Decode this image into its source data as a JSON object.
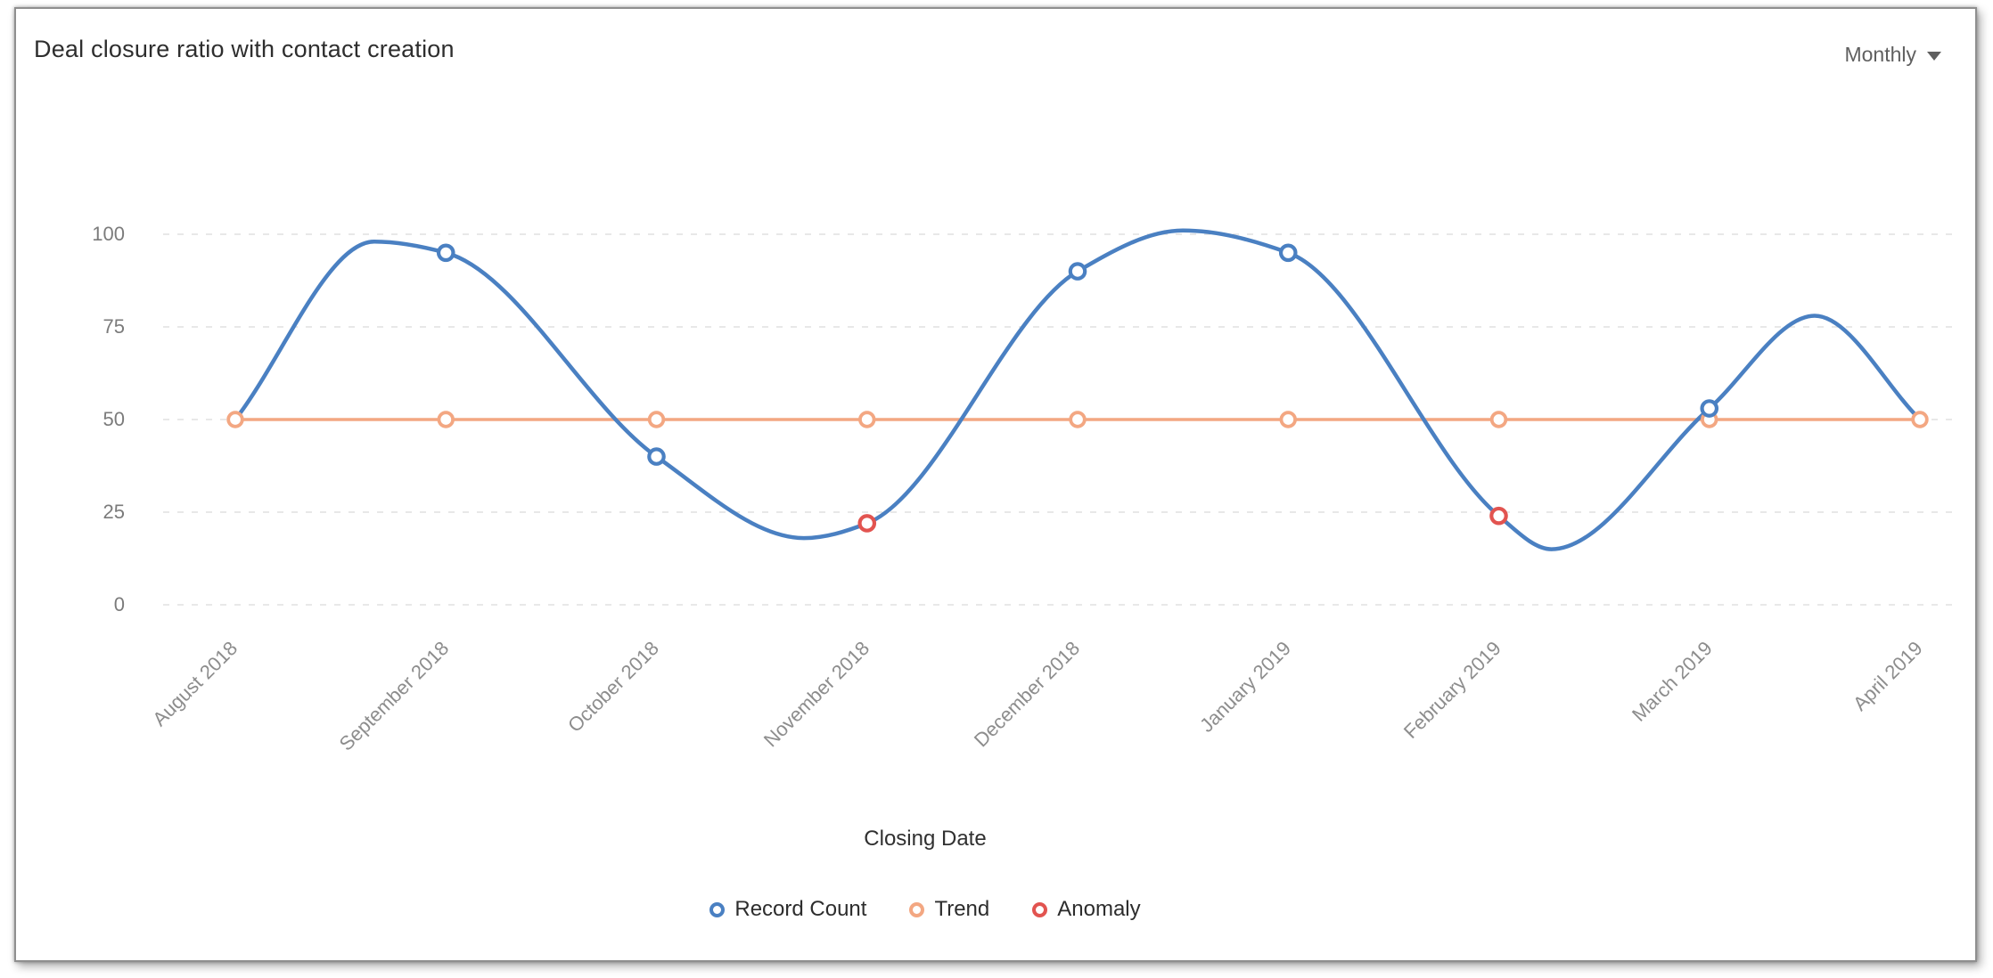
{
  "header": {
    "title": "Deal closure ratio with contact creation",
    "period_selector": "Monthly"
  },
  "chart_data": {
    "type": "line",
    "title": "Deal closure ratio with contact creation",
    "xlabel": "Closing Date",
    "ylabel": "",
    "ylim": [
      0,
      100
    ],
    "yticks": [
      0,
      25,
      50,
      75,
      100
    ],
    "grid": "horizontal-dashed",
    "legend_position": "bottom",
    "categories": [
      "August 2018",
      "September 2018",
      "October 2018",
      "November 2018",
      "December 2018",
      "January 2019",
      "February 2019",
      "March 2019",
      "April 2019"
    ],
    "series": [
      {
        "name": "Record Count",
        "color": "#4a80c2",
        "values": [
          50,
          95,
          40,
          22,
          90,
          95,
          24,
          53,
          50
        ]
      },
      {
        "name": "Trend",
        "color": "#f3a782",
        "values": [
          50,
          50,
          50,
          50,
          50,
          50,
          50,
          50,
          50
        ]
      }
    ],
    "anomalies": {
      "name": "Anomaly",
      "color": "#e25450",
      "points": [
        {
          "category": "November 2018",
          "value": 22
        },
        {
          "category": "February 2019",
          "value": 24
        }
      ]
    },
    "curve_extrema": [
      {
        "x": 0.66,
        "value": 98
      },
      {
        "x": 2.7,
        "value": 18
      },
      {
        "x": 4.5,
        "value": 101
      },
      {
        "x": 6.25,
        "value": 15
      },
      {
        "x": 7.5,
        "value": 78
      }
    ],
    "legend": [
      {
        "label": "Record Count",
        "color": "#4a80c2"
      },
      {
        "label": "Trend",
        "color": "#f3a782"
      },
      {
        "label": "Anomaly",
        "color": "#e25450"
      }
    ],
    "gridline_color": "#e1e1e1"
  }
}
